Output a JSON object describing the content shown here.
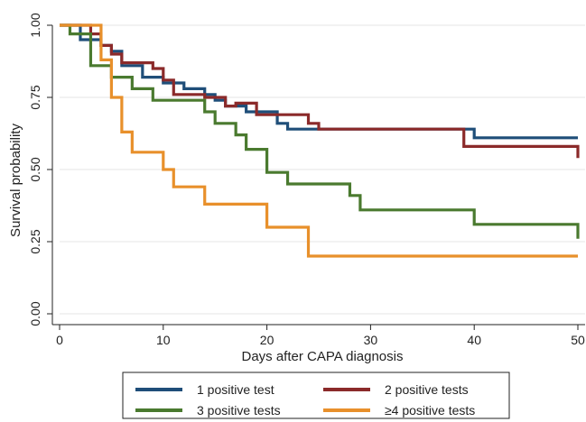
{
  "chart_data": {
    "type": "line",
    "subtype": "step",
    "title": "",
    "xlabel": "Days after CAPA diagnosis",
    "ylabel": "Survival probability",
    "xlim": [
      0,
      50
    ],
    "ylim": [
      0,
      1
    ],
    "x_ticks": [
      "0",
      "10",
      "20",
      "30",
      "40",
      "50"
    ],
    "y_ticks": [
      "0.00",
      "0.25",
      "0.50",
      "0.75",
      "1.00"
    ],
    "grid": "horizontal",
    "legend_position": "bottom",
    "series": [
      {
        "name": "1 positive test",
        "color": "#1f4e79",
        "points": [
          [
            0,
            1.0
          ],
          [
            2,
            0.95
          ],
          [
            4,
            0.93
          ],
          [
            5,
            0.91
          ],
          [
            6,
            0.86
          ],
          [
            8,
            0.82
          ],
          [
            10,
            0.8
          ],
          [
            12,
            0.78
          ],
          [
            14,
            0.76
          ],
          [
            15,
            0.74
          ],
          [
            16,
            0.72
          ],
          [
            18,
            0.7
          ],
          [
            21,
            0.66
          ],
          [
            22,
            0.64
          ],
          [
            23,
            0.64
          ],
          [
            40,
            0.61
          ],
          [
            50,
            0.61
          ]
        ]
      },
      {
        "name": "2 positive tests",
        "color": "#8b2a2a",
        "points": [
          [
            0,
            1.0
          ],
          [
            3,
            0.97
          ],
          [
            4,
            0.93
          ],
          [
            5,
            0.9
          ],
          [
            6,
            0.87
          ],
          [
            9,
            0.85
          ],
          [
            10,
            0.81
          ],
          [
            11,
            0.76
          ],
          [
            14,
            0.75
          ],
          [
            16,
            0.72
          ],
          [
            17,
            0.73
          ],
          [
            19,
            0.69
          ],
          [
            24,
            0.66
          ],
          [
            25,
            0.64
          ],
          [
            39,
            0.58
          ],
          [
            50,
            0.54
          ]
        ]
      },
      {
        "name": "3 positive tests",
        "color": "#4a7a2f",
        "points": [
          [
            0,
            1.0
          ],
          [
            1,
            0.97
          ],
          [
            2,
            0.97
          ],
          [
            3,
            0.86
          ],
          [
            5,
            0.82
          ],
          [
            7,
            0.78
          ],
          [
            9,
            0.74
          ],
          [
            14,
            0.7
          ],
          [
            15,
            0.66
          ],
          [
            17,
            0.62
          ],
          [
            18,
            0.57
          ],
          [
            20,
            0.49
          ],
          [
            22,
            0.45
          ],
          [
            28,
            0.41
          ],
          [
            29,
            0.36
          ],
          [
            40,
            0.31
          ],
          [
            50,
            0.26
          ]
        ]
      },
      {
        "name": "≥4 positive tests",
        "color": "#e8902b",
        "points": [
          [
            0,
            1.0
          ],
          [
            4,
            0.88
          ],
          [
            5,
            0.75
          ],
          [
            6,
            0.63
          ],
          [
            7,
            0.56
          ],
          [
            10,
            0.5
          ],
          [
            11,
            0.44
          ],
          [
            14,
            0.38
          ],
          [
            20,
            0.3
          ],
          [
            24,
            0.2
          ],
          [
            50,
            0.2
          ]
        ]
      }
    ]
  }
}
